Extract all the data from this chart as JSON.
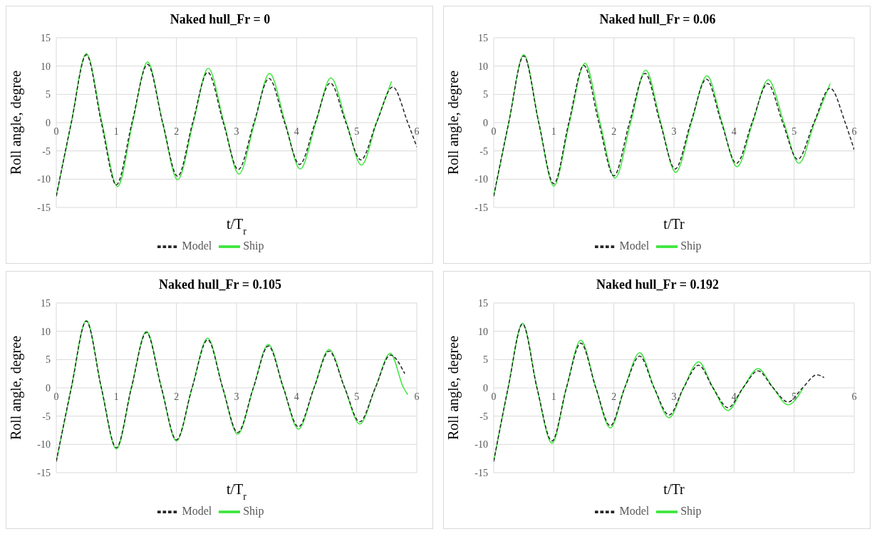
{
  "chart_data": [
    {
      "type": "line",
      "title": "Naked hull_Fr = 0",
      "xlabel": "t/T$_{r}$",
      "ylabel": "Roll angle, degree",
      "xlim": [
        0,
        6
      ],
      "xticks": [
        0,
        1,
        2,
        3,
        4,
        5,
        6
      ],
      "ylim": [
        -15,
        15
      ],
      "yticks": [
        -15,
        -10,
        -5,
        0,
        5,
        10,
        15
      ],
      "grid": true,
      "legend": "bottom",
      "marker": "none",
      "series": [
        {
          "name": "Ship",
          "color": "#3ce63c",
          "line_style": "solid",
          "x": [
            0,
            0.25,
            0.5,
            0.76,
            1.02,
            1.27,
            1.52,
            1.77,
            2.02,
            2.28,
            2.53,
            2.79,
            3.04,
            3.3,
            3.55,
            3.81,
            4.06,
            4.32,
            4.57,
            4.83,
            5.08,
            5.33,
            5.58
          ],
          "values": [
            -13,
            0,
            12.2,
            0,
            -11.3,
            0,
            10.7,
            0,
            -10.1,
            0,
            9.6,
            0,
            -9.1,
            0,
            8.7,
            0,
            -8.2,
            0,
            7.9,
            0,
            -7.5,
            0,
            7.3
          ]
        },
        {
          "name": "Model",
          "color": "#262626",
          "line_style": "dashed",
          "x": [
            0,
            0.25,
            0.5,
            0.75,
            1.0,
            1.26,
            1.52,
            1.77,
            2.02,
            2.27,
            2.52,
            2.78,
            3.03,
            3.29,
            3.54,
            3.8,
            4.05,
            4.31,
            4.56,
            4.82,
            5.07,
            5.33,
            5.6,
            5.85,
            6.0
          ],
          "values": [
            -13,
            0,
            12.0,
            0,
            -11.0,
            0,
            10.3,
            0,
            -9.5,
            0,
            8.9,
            0,
            -8.3,
            0,
            7.8,
            0,
            -7.4,
            0,
            7.0,
            0,
            -6.6,
            0,
            6.3,
            0,
            -4.3
          ]
        }
      ]
    },
    {
      "type": "line",
      "title": "Naked hull_Fr = 0.06",
      "xlabel": "t/Tr",
      "ylabel": "Roll angle, degree",
      "xlim": [
        0,
        6
      ],
      "xticks": [
        0,
        1,
        2,
        3,
        4,
        5,
        6
      ],
      "ylim": [
        -15,
        15
      ],
      "yticks": [
        -15,
        -10,
        -5,
        0,
        5,
        10,
        15
      ],
      "grid": true,
      "legend": "bottom",
      "marker": "none",
      "series": [
        {
          "name": "Ship",
          "color": "#3ce63c",
          "line_style": "solid",
          "x": [
            0,
            0.25,
            0.5,
            0.75,
            1.0,
            1.26,
            1.52,
            1.77,
            2.02,
            2.28,
            2.53,
            2.78,
            3.03,
            3.29,
            3.55,
            3.8,
            4.05,
            4.31,
            4.57,
            4.83,
            5.08,
            5.34,
            5.6
          ],
          "values": [
            -13,
            0,
            12.0,
            0,
            -11.2,
            0,
            10.5,
            0,
            -9.8,
            0,
            9.3,
            0,
            -8.8,
            0,
            8.3,
            0,
            -7.8,
            0,
            7.6,
            0,
            -7.2,
            0,
            6.9
          ]
        },
        {
          "name": "Model",
          "color": "#262626",
          "line_style": "dashed",
          "x": [
            0,
            0.25,
            0.5,
            0.75,
            1.0,
            1.25,
            1.5,
            1.75,
            2.0,
            2.26,
            2.52,
            2.77,
            3.02,
            3.28,
            3.54,
            3.79,
            4.04,
            4.3,
            4.56,
            4.81,
            5.06,
            5.33,
            5.6,
            5.85,
            6.0
          ],
          "values": [
            -13,
            0,
            11.8,
            0,
            -10.8,
            0,
            10.1,
            0,
            -9.4,
            0,
            8.7,
            0,
            -8.2,
            0,
            7.7,
            0,
            -7.2,
            0,
            6.9,
            0,
            -6.5,
            0,
            6.1,
            0,
            -4.8
          ]
        }
      ]
    },
    {
      "type": "line",
      "title": "Naked hull_Fr = 0.105",
      "xlabel": "t/T$_{r}$",
      "ylabel": "Roll angle, degree",
      "xlim": [
        0,
        6
      ],
      "xticks": [
        0,
        1,
        2,
        3,
        4,
        5,
        6
      ],
      "ylim": [
        -15,
        15
      ],
      "yticks": [
        -15,
        -10,
        -5,
        0,
        5,
        10,
        15
      ],
      "grid": true,
      "legend": "bottom",
      "marker": "none",
      "series": [
        {
          "name": "Ship",
          "color": "#3ce63c",
          "line_style": "solid",
          "x": [
            0,
            0.25,
            0.5,
            0.75,
            1.0,
            1.25,
            1.5,
            1.75,
            2.0,
            2.26,
            2.52,
            2.77,
            3.02,
            3.28,
            3.53,
            3.78,
            4.03,
            4.29,
            4.54,
            4.8,
            5.05,
            5.31,
            5.56,
            5.78,
            5.85
          ],
          "values": [
            -13,
            0,
            11.9,
            0,
            -10.8,
            0,
            10.0,
            0,
            -9.4,
            0,
            8.8,
            0,
            -8.2,
            0,
            7.7,
            0,
            -7.3,
            0,
            6.8,
            0,
            -6.4,
            0,
            6.1,
            0,
            -1.2
          ]
        },
        {
          "name": "Model",
          "color": "#262626",
          "line_style": "dashed",
          "x": [
            0,
            0.25,
            0.5,
            0.75,
            1.0,
            1.25,
            1.5,
            1.75,
            2.0,
            2.26,
            2.52,
            2.77,
            3.02,
            3.28,
            3.53,
            3.78,
            4.03,
            4.29,
            4.54,
            4.8,
            5.05,
            5.31,
            5.56,
            5.8
          ],
          "values": [
            -13,
            0,
            11.8,
            0,
            -10.6,
            0,
            9.8,
            0,
            -9.2,
            0,
            8.5,
            0,
            -7.9,
            0,
            7.4,
            0,
            -6.9,
            0,
            6.5,
            0,
            -6.0,
            0,
            5.8,
            2.5
          ]
        }
      ]
    },
    {
      "type": "line",
      "title": "Naked hull_Fr = 0.192",
      "xlabel": "t/Tr",
      "ylabel": "Roll angle, degree",
      "xlim": [
        0,
        6
      ],
      "xticks": [
        0,
        1,
        2,
        3,
        4,
        5,
        6
      ],
      "ylim": [
        -15,
        15
      ],
      "yticks": [
        -15,
        -10,
        -5,
        0,
        5,
        10,
        15
      ],
      "grid": true,
      "legend": "bottom",
      "marker": "none",
      "series": [
        {
          "name": "Ship",
          "color": "#3ce63c",
          "line_style": "solid",
          "x": [
            0,
            0.24,
            0.48,
            0.72,
            0.97,
            1.21,
            1.45,
            1.7,
            1.94,
            2.18,
            2.43,
            2.67,
            2.92,
            3.16,
            3.41,
            3.65,
            3.9,
            4.15,
            4.4,
            4.65,
            4.9,
            5.15
          ],
          "values": [
            -13,
            0,
            11.4,
            0,
            -9.8,
            0,
            8.4,
            0,
            -7.1,
            0,
            6.2,
            0,
            -5.3,
            0,
            4.6,
            0,
            -4.0,
            0,
            3.4,
            0,
            -3.0,
            0
          ]
        },
        {
          "name": "Model",
          "color": "#262626",
          "line_style": "dashed",
          "x": [
            0,
            0.24,
            0.48,
            0.72,
            0.97,
            1.21,
            1.45,
            1.7,
            1.94,
            2.18,
            2.43,
            2.67,
            2.92,
            3.16,
            3.41,
            3.65,
            3.9,
            4.15,
            4.4,
            4.65,
            4.9,
            5.14,
            5.38,
            5.5
          ],
          "values": [
            -13,
            0,
            11.3,
            0,
            -9.4,
            0,
            7.9,
            0,
            -6.7,
            0,
            5.6,
            0,
            -4.8,
            0,
            4.0,
            0,
            -3.5,
            0,
            3.0,
            0,
            -2.5,
            0,
            2.3,
            1.8
          ]
        }
      ]
    }
  ]
}
